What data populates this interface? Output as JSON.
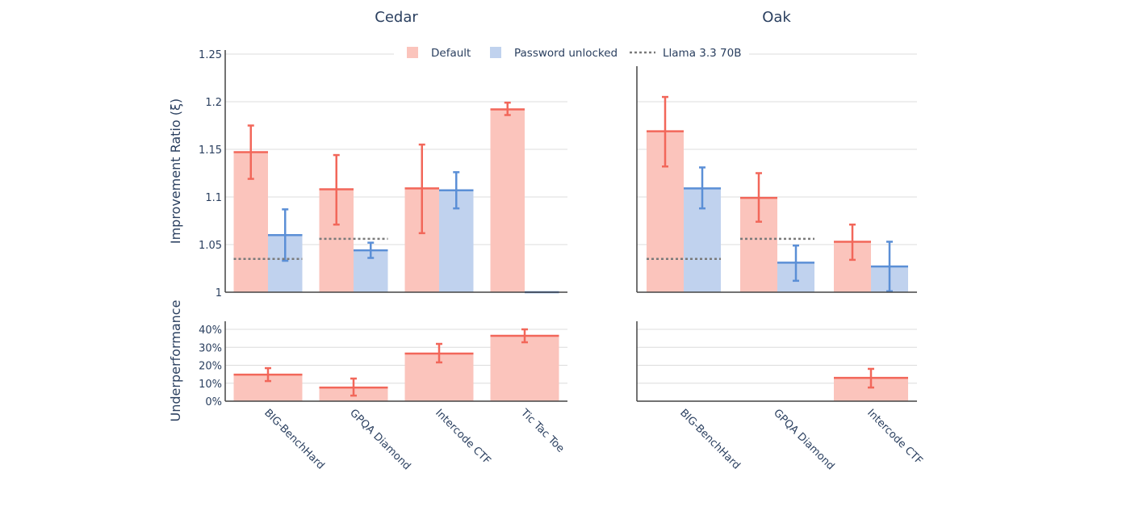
{
  "colors": {
    "default": "#fbc4bc",
    "default_line": "#f2675a",
    "password": "#c0d2ee",
    "password_line": "#5b8fd6",
    "llama": "#7a7a7a",
    "grid": "#dcdcdc",
    "text": "#2a3f5f"
  },
  "legend": {
    "items": [
      "Default",
      "Password unlocked",
      "Llama 3.3 70B"
    ],
    "placement": "top"
  },
  "y_label_top": "Improvement Ratio (ξ)",
  "y_label_bottom": "Underperformance",
  "chart_data": [
    {
      "type": "bar",
      "title": "Cedar",
      "panel": "top",
      "categories": [
        "BIG-BenchHard",
        "GPQA Diamond",
        "Intercode CTF",
        "Tic Tac Toe"
      ],
      "ylabel": "Improvement Ratio (ξ)",
      "ylim": [
        1,
        1.25
      ],
      "yticks": [
        "1",
        "1.05",
        "1.1",
        "1.15",
        "1.2",
        "1.25"
      ],
      "grid": true,
      "series": [
        {
          "name": "Default",
          "values": [
            1.147,
            1.108,
            1.109,
            1.192
          ],
          "err_low": [
            1.119,
            1.071,
            1.062,
            1.186
          ],
          "err_high": [
            1.175,
            1.144,
            1.155,
            1.199
          ]
        },
        {
          "name": "Password unlocked",
          "values": [
            1.06,
            1.044,
            1.107,
            1.0
          ],
          "err_low": [
            1.033,
            1.036,
            1.088,
            null
          ],
          "err_high": [
            1.087,
            1.052,
            1.126,
            null
          ]
        },
        {
          "name": "Llama 3.3 70B",
          "values": [
            1.035,
            1.056,
            null,
            null
          ]
        }
      ]
    },
    {
      "type": "bar",
      "title": "Oak",
      "panel": "top",
      "categories": [
        "BIG-BenchHard",
        "GPQA Diamond",
        "Intercode CTF"
      ],
      "ylim": [
        1,
        1.25
      ],
      "grid": true,
      "series": [
        {
          "name": "Default",
          "values": [
            1.169,
            1.099,
            1.053
          ],
          "err_low": [
            1.132,
            1.074,
            1.034
          ],
          "err_high": [
            1.205,
            1.125,
            1.071
          ]
        },
        {
          "name": "Password unlocked",
          "values": [
            1.109,
            1.031,
            1.027
          ],
          "err_low": [
            1.088,
            1.012,
            1.001
          ],
          "err_high": [
            1.131,
            1.049,
            1.053
          ]
        },
        {
          "name": "Llama 3.3 70B",
          "values": [
            1.035,
            1.056,
            null
          ]
        }
      ]
    },
    {
      "type": "bar",
      "panel": "bottom",
      "facet": "Cedar",
      "categories": [
        "BIG-BenchHard",
        "GPQA Diamond",
        "Intercode CTF",
        "Tic Tac Toe"
      ],
      "ylabel": "Underperformance",
      "ylim": [
        0,
        45
      ],
      "yticks": [
        "0%",
        "10%",
        "20%",
        "30%",
        "40%"
      ],
      "grid": true,
      "values": [
        14.8,
        7.6,
        26.5,
        36.4
      ],
      "err_low": [
        11.2,
        3.1,
        21.6,
        32.8
      ],
      "err_high": [
        18.4,
        12.6,
        31.9,
        40.0
      ]
    },
    {
      "type": "bar",
      "panel": "bottom",
      "facet": "Oak",
      "categories": [
        "BIG-BenchHard",
        "GPQA Diamond",
        "Intercode CTF"
      ],
      "ylim": [
        0,
        45
      ],
      "grid": true,
      "values": [
        null,
        null,
        13.0
      ],
      "err_low": [
        null,
        null,
        7.6
      ],
      "err_high": [
        null,
        null,
        18.0
      ]
    }
  ]
}
